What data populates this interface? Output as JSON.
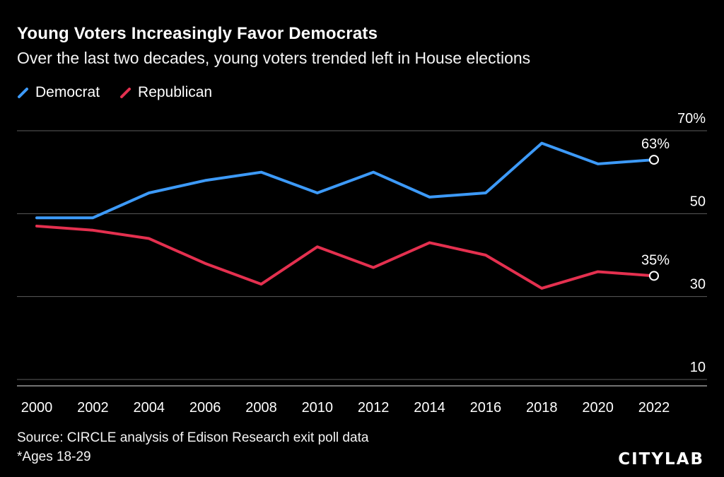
{
  "header": {
    "title": "Young Voters Increasingly Favor Democrats",
    "subtitle": "Over the last two decades, young voters trended left in House elections"
  },
  "legend": [
    {
      "label": "Democrat",
      "color": "#3D9AF8"
    },
    {
      "label": "Republican",
      "color": "#E4304F"
    }
  ],
  "chart_data": {
    "type": "line",
    "title": "Young Voters Increasingly Favor Democrats",
    "categories": [
      "2000",
      "2002",
      "2004",
      "2006",
      "2008",
      "2010",
      "2012",
      "2014",
      "2016",
      "2018",
      "2020",
      "2022"
    ],
    "series": [
      {
        "name": "Democrat",
        "color": "#3D9AF8",
        "values": [
          49,
          49,
          55,
          58,
          60,
          55,
          60,
          54,
          55,
          67,
          62,
          63
        ],
        "end_label": "63%"
      },
      {
        "name": "Republican",
        "color": "#E4304F",
        "values": [
          47,
          46,
          44,
          38,
          33,
          42,
          37,
          43,
          40,
          32,
          36,
          35
        ],
        "end_label": "35%"
      }
    ],
    "y_axis": {
      "tick_values": [
        70,
        50,
        30,
        10
      ],
      "tick_labels": [
        "70%",
        "50",
        "30",
        "10"
      ],
      "range": [
        8,
        72
      ],
      "side": "right"
    },
    "x_axis": {
      "label_every": 1
    },
    "grid": "horizontal",
    "grid_color": "#5B5B5B",
    "axis_color": "#979797",
    "text_color": "#FFFFFF",
    "legend_position": "top-left",
    "end_markers": "open-circle"
  },
  "footer": {
    "source": "Source: CIRCLE analysis of Edison Research exit poll data",
    "note": "*Ages 18-29",
    "logo": "CITYLAB"
  }
}
